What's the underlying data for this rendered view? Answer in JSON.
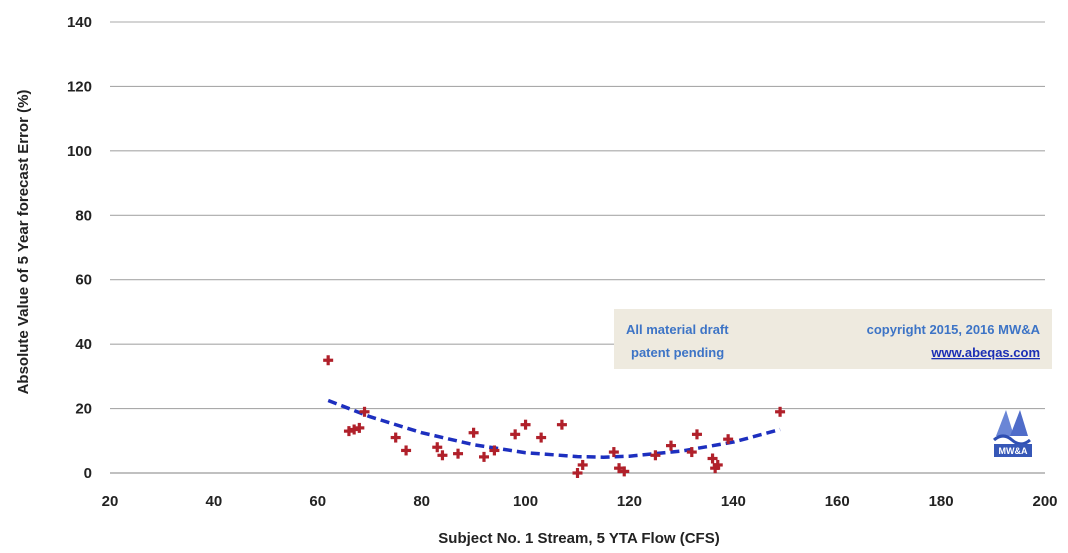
{
  "chart_data": {
    "type": "scatter",
    "title": "",
    "xlabel": "Subject No. 1 Stream, 5 YTA Flow (CFS)",
    "ylabel": "Absolute Value of 5 Year forecast Error (%)",
    "xlim": [
      20,
      200
    ],
    "ylim": [
      0,
      140
    ],
    "x_ticks": [
      20,
      40,
      60,
      80,
      100,
      120,
      140,
      160,
      180,
      200
    ],
    "y_ticks": [
      0,
      20,
      40,
      60,
      80,
      100,
      120,
      140
    ],
    "grid": "horizontal",
    "series": [
      {
        "marker": "plus",
        "color": "#b0202a",
        "points": [
          [
            62,
            35
          ],
          [
            66,
            13
          ],
          [
            67,
            13.5
          ],
          [
            68,
            14
          ],
          [
            69,
            19
          ],
          [
            75,
            11
          ],
          [
            77,
            7
          ],
          [
            83,
            8
          ],
          [
            84,
            5.5
          ],
          [
            87,
            6
          ],
          [
            90,
            12.5
          ],
          [
            92,
            5
          ],
          [
            94,
            7
          ],
          [
            98,
            12
          ],
          [
            100,
            15
          ],
          [
            103,
            11
          ],
          [
            107,
            15
          ],
          [
            110,
            0
          ],
          [
            111,
            2.5
          ],
          [
            117,
            6.5
          ],
          [
            118,
            1.5
          ],
          [
            119,
            0.5
          ],
          [
            125,
            5.5
          ],
          [
            128,
            8.5
          ],
          [
            132,
            6.5
          ],
          [
            133,
            12
          ],
          [
            136,
            4.5
          ],
          [
            136.5,
            1.5
          ],
          [
            137,
            2.5
          ],
          [
            139,
            10.5
          ],
          [
            149,
            19
          ]
        ]
      }
    ],
    "trendline": {
      "style": "dashed",
      "color": "#1d2fbf",
      "x": [
        62,
        70,
        80,
        90,
        100,
        110,
        115,
        120,
        130,
        140,
        149
      ],
      "y": [
        22.5,
        17.5,
        12.5,
        8.8,
        6.3,
        5.1,
        4.9,
        5.2,
        6.8,
        9.6,
        13.5
      ]
    },
    "annotation": {
      "line1_left": "All material draft",
      "line2_left": "patent pending",
      "line1_right": "copyright 2015, 2016   MW&A",
      "line2_right": "www.abeqas.com"
    },
    "logo_text": "MW&A"
  }
}
